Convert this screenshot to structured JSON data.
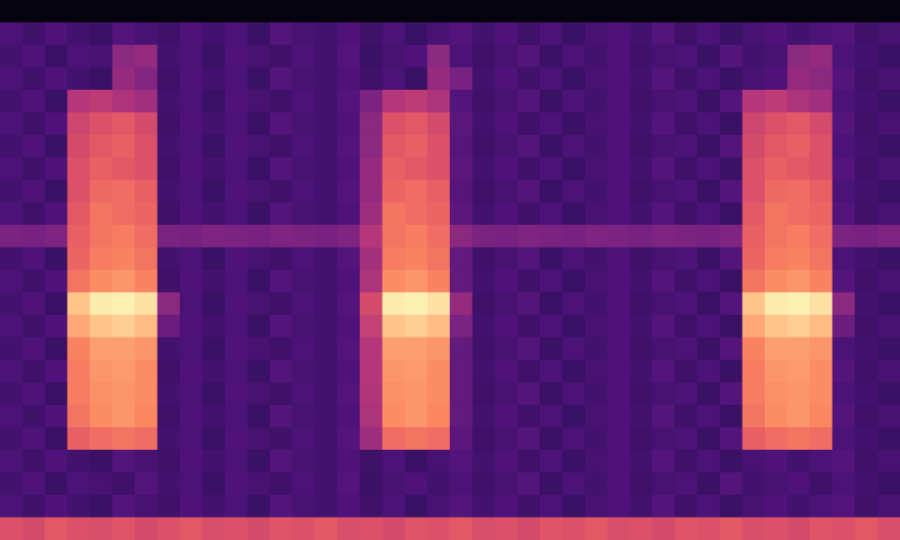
{
  "chart_data": {
    "type": "heatmap",
    "grid": false,
    "tick_labels": false,
    "color_range": [
      0,
      1
    ],
    "cells": [
      [
        0.02,
        0.02,
        0.02,
        0.02,
        0.02,
        0.02,
        0.02,
        0.02,
        0.02,
        0.02,
        0.02,
        0.02,
        0.02,
        0.02,
        0.02,
        0.02,
        0.02,
        0.02,
        0.02,
        0.02,
        0.02,
        0.02,
        0.02,
        0.02,
        0.02,
        0.02,
        0.02,
        0.02,
        0.02,
        0.02,
        0.02,
        0.02,
        0.02,
        0.02,
        0.02,
        0.02,
        0.02,
        0.02,
        0.02,
        0.02
      ],
      [
        0.24,
        0.21,
        0.25,
        0.22,
        0.2,
        0.26,
        0.23,
        0.21,
        0.25,
        0.22,
        0.24,
        0.2,
        0.26,
        0.23,
        0.22,
        0.25,
        0.21,
        0.24,
        0.2,
        0.23,
        0.26,
        0.22,
        0.25,
        0.21,
        0.24,
        0.2,
        0.23,
        0.25,
        0.22,
        0.26,
        0.21,
        0.24,
        0.2,
        0.23,
        0.25,
        0.22,
        0.24,
        0.26,
        0.21,
        0.23
      ],
      [
        0.22,
        0.25,
        0.2,
        0.24,
        0.23,
        0.4,
        0.42,
        0.22,
        0.24,
        0.2,
        0.25,
        0.23,
        0.21,
        0.24,
        0.22,
        0.26,
        0.2,
        0.23,
        0.25,
        0.4,
        0.24,
        0.21,
        0.23,
        0.26,
        0.2,
        0.24,
        0.22,
        0.25,
        0.21,
        0.23,
        0.24,
        0.2,
        0.26,
        0.22,
        0.23,
        0.4,
        0.42,
        0.24,
        0.22,
        0.2
      ],
      [
        0.24,
        0.21,
        0.25,
        0.22,
        0.2,
        0.42,
        0.38,
        0.21,
        0.25,
        0.22,
        0.24,
        0.2,
        0.26,
        0.23,
        0.22,
        0.25,
        0.21,
        0.24,
        0.2,
        0.42,
        0.35,
        0.22,
        0.25,
        0.21,
        0.24,
        0.2,
        0.23,
        0.25,
        0.22,
        0.26,
        0.21,
        0.24,
        0.2,
        0.23,
        0.25,
        0.42,
        0.4,
        0.26,
        0.21,
        0.23
      ],
      [
        0.22,
        0.25,
        0.2,
        0.5,
        0.52,
        0.48,
        0.45,
        0.22,
        0.24,
        0.2,
        0.25,
        0.23,
        0.21,
        0.24,
        0.22,
        0.26,
        0.36,
        0.5,
        0.52,
        0.48,
        0.26,
        0.21,
        0.23,
        0.26,
        0.2,
        0.24,
        0.22,
        0.25,
        0.21,
        0.23,
        0.24,
        0.2,
        0.26,
        0.5,
        0.52,
        0.48,
        0.45,
        0.24,
        0.22,
        0.2
      ],
      [
        0.24,
        0.21,
        0.25,
        0.56,
        0.6,
        0.62,
        0.58,
        0.21,
        0.25,
        0.22,
        0.24,
        0.2,
        0.26,
        0.23,
        0.22,
        0.25,
        0.4,
        0.6,
        0.62,
        0.58,
        0.28,
        0.22,
        0.25,
        0.21,
        0.24,
        0.2,
        0.23,
        0.25,
        0.22,
        0.26,
        0.21,
        0.24,
        0.2,
        0.56,
        0.6,
        0.62,
        0.58,
        0.26,
        0.21,
        0.23
      ],
      [
        0.22,
        0.25,
        0.2,
        0.58,
        0.62,
        0.64,
        0.6,
        0.22,
        0.24,
        0.2,
        0.25,
        0.23,
        0.21,
        0.24,
        0.22,
        0.26,
        0.4,
        0.62,
        0.64,
        0.6,
        0.27,
        0.21,
        0.23,
        0.26,
        0.2,
        0.24,
        0.22,
        0.25,
        0.21,
        0.23,
        0.24,
        0.2,
        0.26,
        0.58,
        0.62,
        0.64,
        0.6,
        0.24,
        0.22,
        0.2
      ],
      [
        0.24,
        0.21,
        0.25,
        0.6,
        0.64,
        0.62,
        0.6,
        0.21,
        0.25,
        0.22,
        0.24,
        0.2,
        0.26,
        0.23,
        0.22,
        0.25,
        0.42,
        0.64,
        0.62,
        0.6,
        0.28,
        0.22,
        0.25,
        0.21,
        0.24,
        0.2,
        0.23,
        0.25,
        0.22,
        0.26,
        0.21,
        0.24,
        0.2,
        0.6,
        0.64,
        0.62,
        0.6,
        0.26,
        0.21,
        0.23
      ],
      [
        0.22,
        0.25,
        0.2,
        0.6,
        0.67,
        0.68,
        0.64,
        0.22,
        0.24,
        0.2,
        0.25,
        0.23,
        0.21,
        0.24,
        0.22,
        0.26,
        0.42,
        0.66,
        0.68,
        0.64,
        0.27,
        0.21,
        0.23,
        0.26,
        0.2,
        0.24,
        0.22,
        0.25,
        0.21,
        0.23,
        0.24,
        0.2,
        0.26,
        0.6,
        0.67,
        0.68,
        0.64,
        0.24,
        0.22,
        0.2
      ],
      [
        0.24,
        0.21,
        0.25,
        0.62,
        0.7,
        0.68,
        0.66,
        0.21,
        0.25,
        0.22,
        0.24,
        0.2,
        0.26,
        0.23,
        0.22,
        0.25,
        0.44,
        0.7,
        0.68,
        0.66,
        0.28,
        0.22,
        0.25,
        0.21,
        0.24,
        0.2,
        0.23,
        0.25,
        0.22,
        0.26,
        0.21,
        0.24,
        0.2,
        0.62,
        0.7,
        0.68,
        0.66,
        0.26,
        0.21,
        0.23
      ],
      [
        0.36,
        0.35,
        0.37,
        0.64,
        0.7,
        0.72,
        0.68,
        0.36,
        0.35,
        0.37,
        0.36,
        0.35,
        0.37,
        0.36,
        0.35,
        0.37,
        0.5,
        0.7,
        0.72,
        0.68,
        0.4,
        0.36,
        0.35,
        0.37,
        0.36,
        0.35,
        0.37,
        0.36,
        0.35,
        0.37,
        0.36,
        0.35,
        0.37,
        0.64,
        0.7,
        0.72,
        0.68,
        0.36,
        0.35,
        0.37
      ],
      [
        0.22,
        0.25,
        0.2,
        0.66,
        0.72,
        0.74,
        0.7,
        0.22,
        0.24,
        0.2,
        0.25,
        0.23,
        0.21,
        0.24,
        0.22,
        0.26,
        0.46,
        0.72,
        0.74,
        0.7,
        0.3,
        0.21,
        0.23,
        0.26,
        0.2,
        0.24,
        0.22,
        0.25,
        0.21,
        0.23,
        0.24,
        0.2,
        0.26,
        0.66,
        0.72,
        0.74,
        0.7,
        0.24,
        0.22,
        0.2
      ],
      [
        0.24,
        0.21,
        0.25,
        0.7,
        0.76,
        0.78,
        0.74,
        0.21,
        0.25,
        0.22,
        0.24,
        0.2,
        0.26,
        0.23,
        0.22,
        0.25,
        0.48,
        0.76,
        0.78,
        0.74,
        0.3,
        0.22,
        0.25,
        0.21,
        0.24,
        0.2,
        0.23,
        0.25,
        0.22,
        0.26,
        0.21,
        0.24,
        0.2,
        0.7,
        0.76,
        0.78,
        0.74,
        0.26,
        0.21,
        0.23
      ],
      [
        0.22,
        0.25,
        0.2,
        0.88,
        0.96,
        0.97,
        0.94,
        0.4,
        0.24,
        0.2,
        0.25,
        0.23,
        0.21,
        0.24,
        0.22,
        0.26,
        0.58,
        0.96,
        0.97,
        0.94,
        0.42,
        0.21,
        0.23,
        0.26,
        0.2,
        0.24,
        0.22,
        0.25,
        0.21,
        0.23,
        0.24,
        0.2,
        0.26,
        0.88,
        0.96,
        0.97,
        0.94,
        0.4,
        0.22,
        0.2
      ],
      [
        0.24,
        0.21,
        0.25,
        0.82,
        0.88,
        0.9,
        0.86,
        0.32,
        0.25,
        0.22,
        0.24,
        0.2,
        0.26,
        0.23,
        0.22,
        0.25,
        0.54,
        0.88,
        0.9,
        0.86,
        0.36,
        0.22,
        0.25,
        0.21,
        0.24,
        0.2,
        0.23,
        0.25,
        0.22,
        0.26,
        0.21,
        0.24,
        0.2,
        0.82,
        0.88,
        0.9,
        0.86,
        0.32,
        0.21,
        0.23
      ],
      [
        0.22,
        0.25,
        0.2,
        0.74,
        0.8,
        0.8,
        0.78,
        0.22,
        0.24,
        0.2,
        0.25,
        0.23,
        0.21,
        0.24,
        0.22,
        0.26,
        0.5,
        0.8,
        0.8,
        0.78,
        0.3,
        0.21,
        0.23,
        0.26,
        0.2,
        0.24,
        0.22,
        0.25,
        0.21,
        0.23,
        0.24,
        0.2,
        0.26,
        0.74,
        0.8,
        0.8,
        0.78,
        0.24,
        0.22,
        0.2
      ],
      [
        0.24,
        0.21,
        0.25,
        0.72,
        0.78,
        0.79,
        0.76,
        0.21,
        0.25,
        0.22,
        0.24,
        0.2,
        0.26,
        0.23,
        0.22,
        0.25,
        0.5,
        0.78,
        0.79,
        0.76,
        0.3,
        0.22,
        0.25,
        0.21,
        0.24,
        0.2,
        0.23,
        0.25,
        0.22,
        0.26,
        0.21,
        0.24,
        0.2,
        0.72,
        0.78,
        0.79,
        0.76,
        0.26,
        0.21,
        0.23
      ],
      [
        0.22,
        0.25,
        0.2,
        0.72,
        0.77,
        0.78,
        0.76,
        0.22,
        0.24,
        0.2,
        0.25,
        0.23,
        0.21,
        0.24,
        0.22,
        0.26,
        0.49,
        0.77,
        0.78,
        0.76,
        0.3,
        0.21,
        0.23,
        0.26,
        0.2,
        0.24,
        0.22,
        0.25,
        0.21,
        0.23,
        0.24,
        0.2,
        0.26,
        0.72,
        0.77,
        0.78,
        0.76,
        0.24,
        0.22,
        0.2
      ],
      [
        0.24,
        0.21,
        0.25,
        0.7,
        0.76,
        0.78,
        0.75,
        0.21,
        0.25,
        0.22,
        0.24,
        0.2,
        0.26,
        0.23,
        0.22,
        0.25,
        0.48,
        0.76,
        0.78,
        0.75,
        0.3,
        0.22,
        0.25,
        0.21,
        0.24,
        0.2,
        0.23,
        0.25,
        0.22,
        0.26,
        0.21,
        0.24,
        0.2,
        0.7,
        0.76,
        0.78,
        0.75,
        0.26,
        0.21,
        0.23
      ],
      [
        0.22,
        0.25,
        0.2,
        0.64,
        0.68,
        0.7,
        0.68,
        0.22,
        0.24,
        0.2,
        0.25,
        0.23,
        0.21,
        0.24,
        0.22,
        0.26,
        0.44,
        0.68,
        0.7,
        0.68,
        0.28,
        0.21,
        0.23,
        0.26,
        0.2,
        0.24,
        0.22,
        0.25,
        0.21,
        0.23,
        0.24,
        0.2,
        0.26,
        0.64,
        0.68,
        0.7,
        0.68,
        0.24,
        0.22,
        0.2
      ],
      [
        0.24,
        0.21,
        0.25,
        0.22,
        0.2,
        0.26,
        0.23,
        0.21,
        0.25,
        0.22,
        0.24,
        0.2,
        0.26,
        0.23,
        0.22,
        0.25,
        0.21,
        0.24,
        0.2,
        0.23,
        0.26,
        0.22,
        0.25,
        0.21,
        0.24,
        0.2,
        0.23,
        0.25,
        0.22,
        0.26,
        0.21,
        0.24,
        0.2,
        0.23,
        0.25,
        0.22,
        0.24,
        0.26,
        0.21,
        0.23
      ],
      [
        0.22,
        0.25,
        0.2,
        0.24,
        0.23,
        0.21,
        0.26,
        0.22,
        0.24,
        0.2,
        0.25,
        0.23,
        0.21,
        0.24,
        0.22,
        0.26,
        0.2,
        0.23,
        0.25,
        0.22,
        0.24,
        0.21,
        0.23,
        0.26,
        0.2,
        0.24,
        0.22,
        0.25,
        0.21,
        0.23,
        0.24,
        0.2,
        0.26,
        0.22,
        0.23,
        0.25,
        0.21,
        0.24,
        0.22,
        0.2
      ],
      [
        0.24,
        0.21,
        0.25,
        0.22,
        0.2,
        0.26,
        0.23,
        0.21,
        0.25,
        0.22,
        0.24,
        0.2,
        0.26,
        0.23,
        0.22,
        0.25,
        0.21,
        0.24,
        0.2,
        0.23,
        0.26,
        0.22,
        0.25,
        0.21,
        0.24,
        0.2,
        0.23,
        0.25,
        0.22,
        0.26,
        0.21,
        0.24,
        0.2,
        0.23,
        0.25,
        0.22,
        0.24,
        0.26,
        0.21,
        0.23
      ],
      [
        0.6,
        0.58,
        0.62,
        0.6,
        0.59,
        0.61,
        0.58,
        0.6,
        0.62,
        0.59,
        0.6,
        0.58,
        0.61,
        0.6,
        0.62,
        0.59,
        0.6,
        0.58,
        0.61,
        0.6,
        0.62,
        0.59,
        0.6,
        0.58,
        0.61,
        0.6,
        0.62,
        0.59,
        0.6,
        0.58,
        0.61,
        0.6,
        0.62,
        0.59,
        0.6,
        0.58,
        0.61,
        0.6,
        0.62,
        0.59
      ]
    ]
  }
}
